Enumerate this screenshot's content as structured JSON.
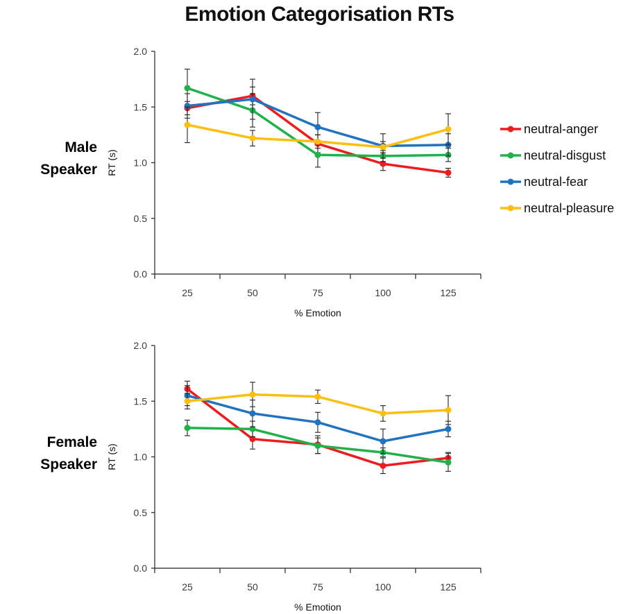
{
  "title": "Emotion Categorisation RTs",
  "legend": {
    "entries": [
      {
        "name": "neutral-anger",
        "color": "#ee1c1c"
      },
      {
        "name": "neutral-disgust",
        "color": "#1fb24a"
      },
      {
        "name": "neutral-fear",
        "color": "#1f73c0"
      },
      {
        "name": "neutral-pleasure",
        "color": "#fcbf0f"
      }
    ]
  },
  "chart_data": [
    {
      "type": "line",
      "panel_label_line1": "Male",
      "panel_label_line2": "Speaker",
      "xlabel": "% Emotion",
      "ylabel": "RT (s)",
      "ylim": [
        0,
        2
      ],
      "yticks": [
        "0.0",
        "0.5",
        "1.0",
        "1.5",
        "2.0"
      ],
      "categories": [
        "25",
        "50",
        "75",
        "100",
        "125"
      ],
      "grid": false,
      "legend_position": "right",
      "series": [
        {
          "name": "neutral-anger",
          "color": "#ee1c1c",
          "values": [
            1.49,
            1.6,
            1.17,
            0.99,
            0.91
          ],
          "errors": [
            0.06,
            0.08,
            0.08,
            0.06,
            0.04
          ]
        },
        {
          "name": "neutral-disgust",
          "color": "#1fb24a",
          "values": [
            1.67,
            1.47,
            1.07,
            1.06,
            1.07
          ],
          "errors": [
            0.17,
            0.15,
            0.11,
            0.05,
            0.06
          ]
        },
        {
          "name": "neutral-fear",
          "color": "#1f73c0",
          "values": [
            1.51,
            1.57,
            1.32,
            1.15,
            1.16
          ],
          "errors": [
            0.11,
            0.18,
            0.13,
            0.11,
            0.1
          ]
        },
        {
          "name": "neutral-pleasure",
          "color": "#fcbf0f",
          "values": [
            1.34,
            1.22,
            1.19,
            1.14,
            1.3
          ],
          "errors": [
            0.16,
            0.07,
            0.06,
            0.05,
            0.14
          ]
        }
      ]
    },
    {
      "type": "line",
      "panel_label_line1": "Female",
      "panel_label_line2": "Speaker",
      "xlabel": "% Emotion",
      "ylabel": "RT (s)",
      "ylim": [
        0,
        2
      ],
      "yticks": [
        "0.0",
        "0.5",
        "1.0",
        "1.5",
        "2.0"
      ],
      "categories": [
        "25",
        "50",
        "75",
        "100",
        "125"
      ],
      "grid": false,
      "series": [
        {
          "name": "neutral-anger",
          "color": "#ee1c1c",
          "values": [
            1.61,
            1.16,
            1.11,
            0.92,
            0.99
          ],
          "errors": [
            0.07,
            0.09,
            0.08,
            0.07,
            0.05
          ]
        },
        {
          "name": "neutral-disgust",
          "color": "#1fb24a",
          "values": [
            1.26,
            1.25,
            1.1,
            1.04,
            0.95
          ],
          "errors": [
            0.07,
            0.07,
            0.07,
            0.04,
            0.08
          ]
        },
        {
          "name": "neutral-fear",
          "color": "#1f73c0",
          "values": [
            1.55,
            1.39,
            1.31,
            1.14,
            1.25
          ],
          "errors": [
            0.09,
            0.12,
            0.09,
            0.11,
            0.07
          ]
        },
        {
          "name": "neutral-pleasure",
          "color": "#fcbf0f",
          "values": [
            1.5,
            1.56,
            1.54,
            1.39,
            1.42
          ],
          "errors": [
            0.07,
            0.11,
            0.06,
            0.07,
            0.13
          ]
        }
      ]
    }
  ]
}
